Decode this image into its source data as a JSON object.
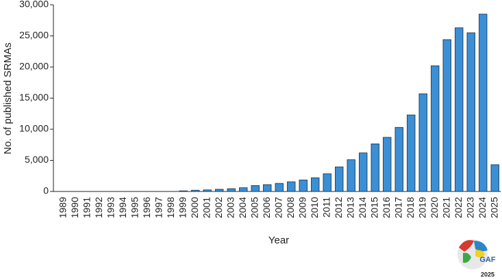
{
  "chart_data": {
    "type": "bar",
    "ylabel": "No. of published SRMAs",
    "xlabel": "Year",
    "categories": [
      "1989",
      "1990",
      "1991",
      "1992",
      "1993",
      "1994",
      "1995",
      "1996",
      "1997",
      "1998",
      "1999",
      "2000",
      "2001",
      "2002",
      "2003",
      "2004",
      "2005",
      "2006",
      "2007",
      "2008",
      "2009",
      "2010",
      "2011",
      "2012",
      "2013",
      "2014",
      "2015",
      "2016",
      "2017",
      "2018",
      "2019",
      "2020",
      "2021",
      "2022",
      "2023",
      "2024",
      "2025"
    ],
    "values": [
      0,
      0,
      0,
      0,
      0,
      0,
      0,
      0,
      0,
      0,
      100,
      200,
      250,
      350,
      450,
      600,
      950,
      1100,
      1300,
      1550,
      1850,
      2200,
      2850,
      3950,
      5100,
      6200,
      7650,
      8700,
      10300,
      12300,
      15700,
      20200,
      24400,
      26300,
      25500,
      28500,
      4300
    ],
    "color": "#3a8fd6",
    "ylim": [
      0,
      30000
    ],
    "yticks": [
      0,
      {
        "value": 5000,
        "label": "5,000"
      },
      {
        "value": 10000,
        "label": "10,000"
      },
      {
        "value": 15000,
        "label": "15,000"
      },
      {
        "value": 20000,
        "label": "20,000"
      },
      {
        "value": 25000,
        "label": "25,000"
      },
      {
        "value": 30000,
        "label": "30,000"
      }
    ],
    "grid": false
  },
  "logo": {
    "text": "GAF",
    "year": "2025"
  }
}
